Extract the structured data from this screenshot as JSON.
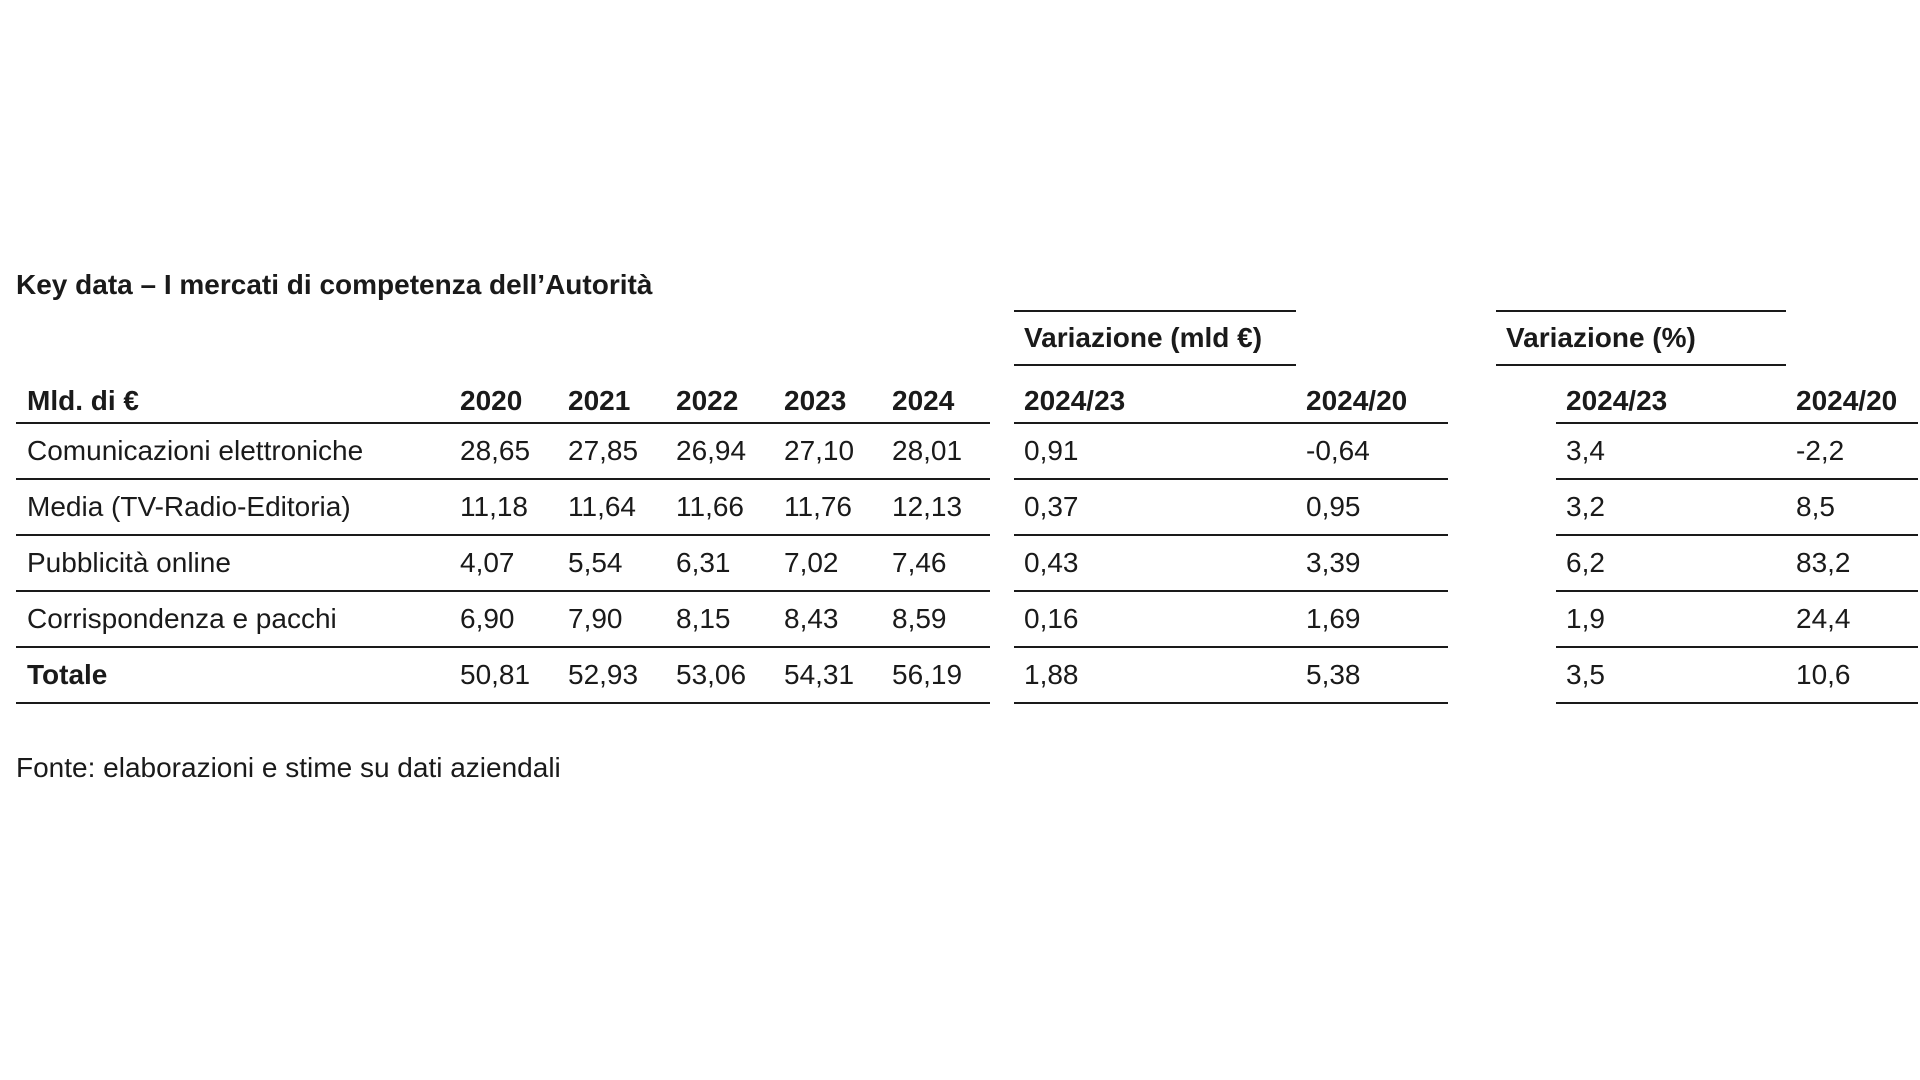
{
  "title": "Key data – I mercati di competenza dell’Autorità",
  "group_headers": {
    "abs": "Variazione (mld €)",
    "pct": "Variazione (%)"
  },
  "columns": {
    "label": "Mld. di €",
    "years": [
      "2020",
      "2021",
      "2022",
      "2023",
      "2024"
    ],
    "abs": [
      "2024/23",
      "2024/20"
    ],
    "pct": [
      "2024/23",
      "2024/20"
    ]
  },
  "rows": [
    {
      "label": "Comunicazioni elettroniche",
      "values": [
        "28,65",
        "27,85",
        "26,94",
        "27,10",
        "28,01"
      ],
      "abs": [
        "0,91",
        "-0,64"
      ],
      "pct": [
        "3,4",
        "-2,2"
      ]
    },
    {
      "label": "Media (TV-Radio-Editoria)",
      "values": [
        "11,18",
        "11,64",
        "11,66",
        "11,76",
        "12,13"
      ],
      "abs": [
        "0,37",
        "0,95"
      ],
      "pct": [
        "3,2",
        "8,5"
      ]
    },
    {
      "label": "Pubblicità online",
      "values": [
        "4,07",
        "5,54",
        "6,31",
        "7,02",
        "7,46"
      ],
      "abs": [
        "0,43",
        "3,39"
      ],
      "pct": [
        "6,2",
        "83,2"
      ]
    },
    {
      "label": "Corrispondenza e pacchi",
      "values": [
        "6,90",
        "7,90",
        "8,15",
        "8,43",
        "8,59"
      ],
      "abs": [
        "0,16",
        "1,69"
      ],
      "pct": [
        "1,9",
        "24,4"
      ]
    },
    {
      "label": "Totale",
      "values": [
        "50,81",
        "52,93",
        "53,06",
        "54,31",
        "56,19"
      ],
      "abs": [
        "1,88",
        "5,38"
      ],
      "pct": [
        "3,5",
        "10,6"
      ]
    }
  ],
  "source": "Fonte: elaborazioni e stime su dati aziendali"
}
